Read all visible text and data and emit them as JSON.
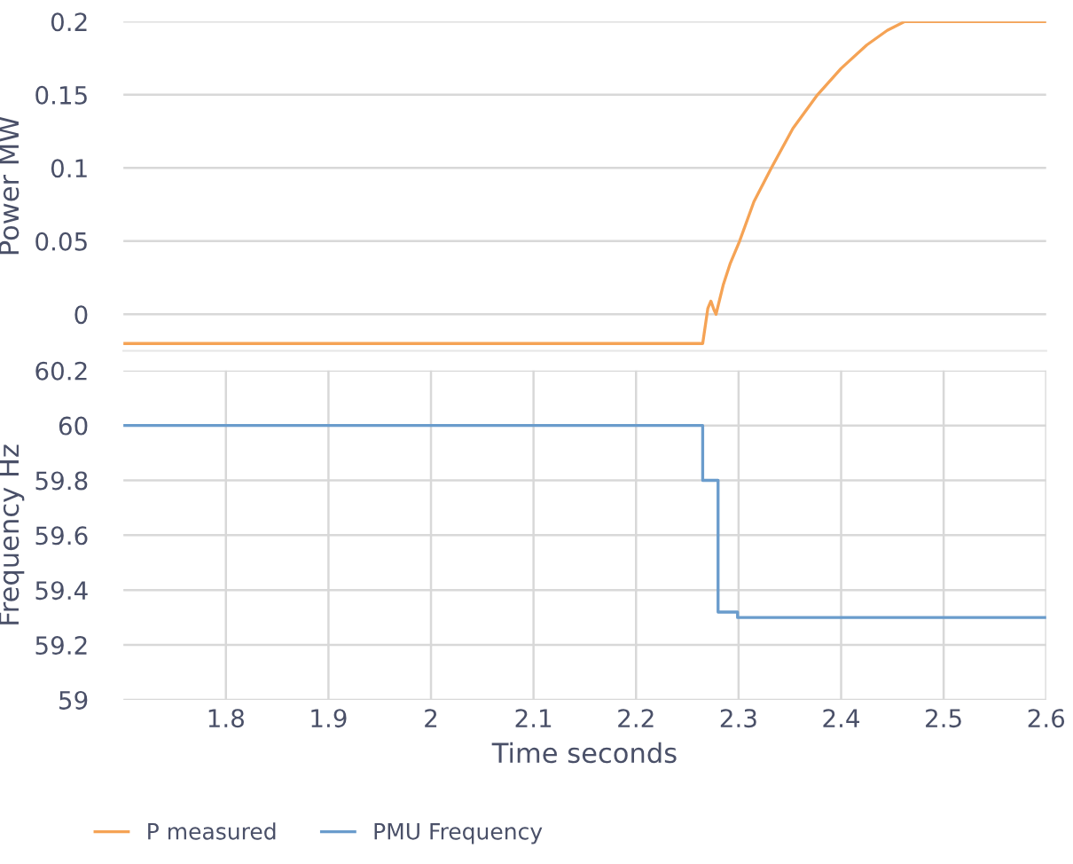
{
  "chart_data": [
    {
      "type": "line",
      "ylabel": "Power MW",
      "xlim": [
        1.7,
        2.6
      ],
      "ylim": [
        -0.025,
        0.2
      ],
      "yticks": [
        0,
        0.05,
        0.1,
        0.15,
        0.2
      ],
      "tick_labels": "y",
      "grid": "y",
      "legend": "bottom",
      "series": [
        {
          "name": "P measured",
          "color": "#f5a355",
          "x": [
            1.7,
            2.265,
            2.27,
            2.273,
            2.276,
            2.278,
            2.285,
            2.292,
            2.301,
            2.315,
            2.332,
            2.353,
            2.377,
            2.4,
            2.425,
            2.445,
            2.462,
            2.6
          ],
          "values": [
            -0.02,
            -0.02,
            0.004,
            0.009,
            0.003,
            0.0,
            0.02,
            0.035,
            0.05,
            0.077,
            0.1,
            0.127,
            0.15,
            0.168,
            0.184,
            0.194,
            0.2,
            0.2
          ]
        }
      ]
    },
    {
      "type": "step",
      "ylabel": "Frequency Hz",
      "xlabel": "Time seconds",
      "xlim": [
        1.7,
        2.6
      ],
      "xticks": [
        1.8,
        1.9,
        2,
        2.1,
        2.2,
        2.3,
        2.4,
        2.5,
        2.6
      ],
      "ylim": [
        59,
        60.2
      ],
      "yticks": [
        59,
        59.2,
        59.4,
        59.6,
        59.8,
        60,
        60.2
      ],
      "grid": true,
      "legend": "bottom",
      "series": [
        {
          "name": "PMU Frequency",
          "color": "#6a9ccc",
          "x": [
            1.7,
            2.265,
            2.28,
            2.292,
            2.299,
            2.6
          ],
          "values": [
            60,
            59.8,
            59.32,
            59.32,
            59.3,
            59.3
          ]
        }
      ]
    }
  ]
}
